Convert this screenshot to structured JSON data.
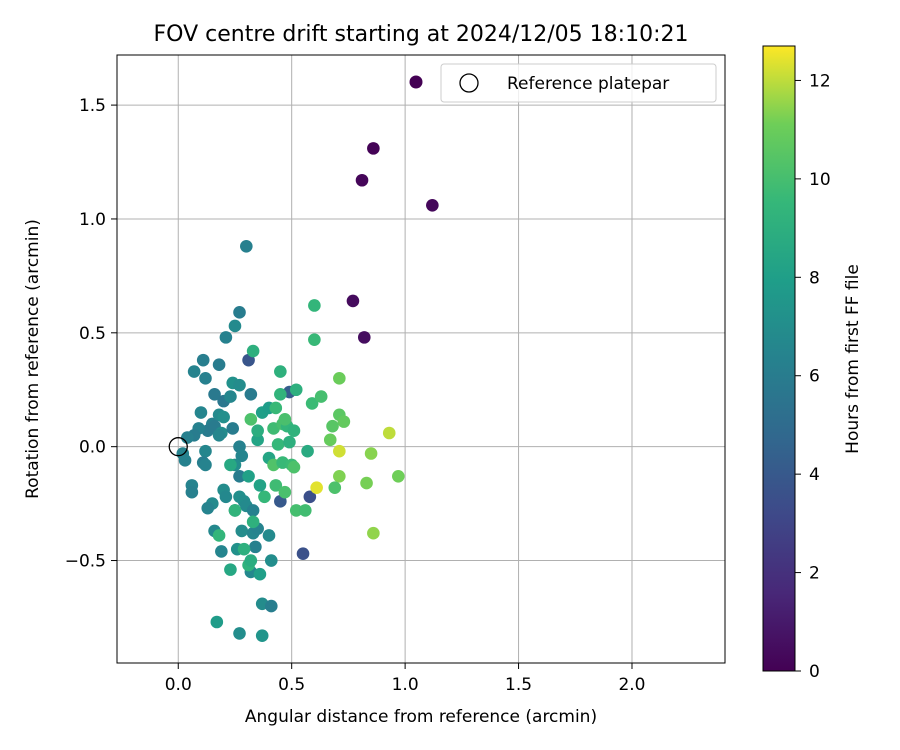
{
  "chart_data": {
    "type": "scatter",
    "title": "FOV centre drift starting at 2024/12/05 18:10:21",
    "xlabel": "Angular distance from reference (arcmin)",
    "ylabel": "Rotation from reference (arcmin)",
    "xlim": [
      -0.27,
      2.41
    ],
    "ylim": [
      -0.95,
      1.72
    ],
    "xticks": [
      0.0,
      0.5,
      1.0,
      1.5,
      2.0
    ],
    "xtick_labels": [
      "0.0",
      "0.5",
      "1.0",
      "1.5",
      "2.0"
    ],
    "yticks": [
      -0.5,
      0.0,
      0.5,
      1.0,
      1.5
    ],
    "ytick_labels": [
      "−0.5",
      "0.0",
      "0.5",
      "1.0",
      "1.5"
    ],
    "grid": true,
    "legend_placement": "top-right",
    "legend": [
      {
        "label": "",
        "marker": "filled-circle",
        "color": "#440154"
      },
      {
        "label": "Reference platepar",
        "marker": "hollow-circle",
        "color": "#000000"
      }
    ],
    "reference_point": {
      "x": 0.0,
      "y": 0.0
    },
    "colorbar": {
      "label": "Hours from first FF file",
      "range": [
        0,
        12.7
      ],
      "ticks": [
        0,
        2,
        4,
        6,
        8,
        10,
        12
      ],
      "tick_labels": [
        "0",
        "2",
        "4",
        "6",
        "8",
        "10",
        "12"
      ],
      "colormap": "viridis"
    },
    "points": [
      {
        "x": 0.86,
        "y": 1.31,
        "h": 0.1
      },
      {
        "x": 0.81,
        "y": 1.17,
        "h": 0.2
      },
      {
        "x": 1.12,
        "y": 1.06,
        "h": 0.3
      },
      {
        "x": 0.77,
        "y": 0.64,
        "h": 0.4
      },
      {
        "x": 0.82,
        "y": 0.48,
        "h": 0.5
      },
      {
        "x": 0.31,
        "y": 0.38,
        "h": 3.8
      },
      {
        "x": 0.55,
        "y": -0.47,
        "h": 3.6
      },
      {
        "x": 0.58,
        "y": -0.22,
        "h": 3.5
      },
      {
        "x": 0.45,
        "y": -0.24,
        "h": 4.0
      },
      {
        "x": 0.49,
        "y": 0.24,
        "h": 4.2
      },
      {
        "x": 0.3,
        "y": 0.88,
        "h": 6.2
      },
      {
        "x": 0.27,
        "y": 0.59,
        "h": 6.0
      },
      {
        "x": 0.25,
        "y": 0.53,
        "h": 6.8
      },
      {
        "x": 0.21,
        "y": 0.48,
        "h": 6.3
      },
      {
        "x": 0.11,
        "y": 0.38,
        "h": 6.1
      },
      {
        "x": 0.07,
        "y": 0.33,
        "h": 6.4
      },
      {
        "x": 0.12,
        "y": 0.3,
        "h": 6.2
      },
      {
        "x": 0.18,
        "y": 0.36,
        "h": 6.0
      },
      {
        "x": 0.16,
        "y": 0.23,
        "h": 5.8
      },
      {
        "x": 0.2,
        "y": 0.2,
        "h": 5.7
      },
      {
        "x": 0.23,
        "y": 0.22,
        "h": 6.6
      },
      {
        "x": 0.24,
        "y": 0.28,
        "h": 7.2
      },
      {
        "x": 0.27,
        "y": 0.27,
        "h": 6.9
      },
      {
        "x": 0.32,
        "y": 0.23,
        "h": 5.9
      },
      {
        "x": 0.1,
        "y": 0.15,
        "h": 6.5
      },
      {
        "x": 0.15,
        "y": 0.1,
        "h": 6.2
      },
      {
        "x": 0.13,
        "y": 0.07,
        "h": 5.9
      },
      {
        "x": 0.09,
        "y": 0.08,
        "h": 6.3
      },
      {
        "x": 0.07,
        "y": 0.05,
        "h": 6.0
      },
      {
        "x": 0.04,
        "y": 0.04,
        "h": 6.2
      },
      {
        "x": 0.02,
        "y": -0.03,
        "h": 6.4
      },
      {
        "x": 0.03,
        "y": -0.06,
        "h": 6.3
      },
      {
        "x": 0.12,
        "y": -0.02,
        "h": 6.6
      },
      {
        "x": 0.11,
        "y": -0.07,
        "h": 6.1
      },
      {
        "x": 0.12,
        "y": -0.08,
        "h": 6.4
      },
      {
        "x": 0.18,
        "y": 0.14,
        "h": 6.8
      },
      {
        "x": 0.2,
        "y": 0.13,
        "h": 7.1
      },
      {
        "x": 0.16,
        "y": 0.09,
        "h": 5.9
      },
      {
        "x": 0.19,
        "y": 0.06,
        "h": 7.0
      },
      {
        "x": 0.18,
        "y": 0.05,
        "h": 6.6
      },
      {
        "x": 0.24,
        "y": 0.08,
        "h": 6.0
      },
      {
        "x": 0.27,
        "y": 0.0,
        "h": 6.3
      },
      {
        "x": 0.28,
        "y": -0.04,
        "h": 6.5
      },
      {
        "x": 0.25,
        "y": -0.08,
        "h": 7.0
      },
      {
        "x": 0.27,
        "y": -0.13,
        "h": 6.0
      },
      {
        "x": 0.06,
        "y": -0.17,
        "h": 6.4
      },
      {
        "x": 0.06,
        "y": -0.2,
        "h": 6.2
      },
      {
        "x": 0.2,
        "y": -0.19,
        "h": 6.9
      },
      {
        "x": 0.27,
        "y": -0.22,
        "h": 7.1
      },
      {
        "x": 0.21,
        "y": -0.22,
        "h": 6.7
      },
      {
        "x": 0.15,
        "y": -0.25,
        "h": 6.8
      },
      {
        "x": 0.13,
        "y": -0.27,
        "h": 6.4
      },
      {
        "x": 0.25,
        "y": -0.28,
        "h": 6.5
      },
      {
        "x": 0.29,
        "y": -0.24,
        "h": 7.0
      },
      {
        "x": 0.3,
        "y": -0.26,
        "h": 6.8
      },
      {
        "x": 0.33,
        "y": -0.28,
        "h": 6.3
      },
      {
        "x": 0.16,
        "y": -0.37,
        "h": 6.7
      },
      {
        "x": 0.28,
        "y": -0.37,
        "h": 6.9
      },
      {
        "x": 0.33,
        "y": -0.38,
        "h": 6.6
      },
      {
        "x": 0.35,
        "y": -0.36,
        "h": 6.4
      },
      {
        "x": 0.4,
        "y": -0.39,
        "h": 6.8
      },
      {
        "x": 0.19,
        "y": -0.46,
        "h": 6.5
      },
      {
        "x": 0.26,
        "y": -0.45,
        "h": 7.2
      },
      {
        "x": 0.34,
        "y": -0.44,
        "h": 6.3
      },
      {
        "x": 0.41,
        "y": -0.5,
        "h": 7.0
      },
      {
        "x": 0.32,
        "y": -0.55,
        "h": 6.7
      },
      {
        "x": 0.37,
        "y": -0.69,
        "h": 6.9
      },
      {
        "x": 0.41,
        "y": -0.7,
        "h": 6.1
      },
      {
        "x": 0.27,
        "y": -0.82,
        "h": 7.0
      },
      {
        "x": 0.37,
        "y": -0.83,
        "h": 7.4
      },
      {
        "x": 0.17,
        "y": -0.77,
        "h": 7.8
      },
      {
        "x": 0.23,
        "y": -0.54,
        "h": 8.5
      },
      {
        "x": 0.36,
        "y": -0.56,
        "h": 8.0
      },
      {
        "x": 0.29,
        "y": -0.45,
        "h": 9.0
      },
      {
        "x": 0.31,
        "y": -0.52,
        "h": 9.2
      },
      {
        "x": 0.32,
        "y": -0.5,
        "h": 8.8
      },
      {
        "x": 0.18,
        "y": -0.39,
        "h": 9.4
      },
      {
        "x": 0.33,
        "y": -0.33,
        "h": 9.1
      },
      {
        "x": 0.25,
        "y": -0.28,
        "h": 9.3
      },
      {
        "x": 0.38,
        "y": -0.22,
        "h": 9.5
      },
      {
        "x": 0.36,
        "y": -0.17,
        "h": 8.2
      },
      {
        "x": 0.31,
        "y": -0.13,
        "h": 8.1
      },
      {
        "x": 0.23,
        "y": -0.08,
        "h": 8.6
      },
      {
        "x": 0.43,
        "y": -0.17,
        "h": 9.8
      },
      {
        "x": 0.47,
        "y": -0.2,
        "h": 10.1
      },
      {
        "x": 0.52,
        "y": -0.28,
        "h": 10.0
      },
      {
        "x": 0.56,
        "y": -0.28,
        "h": 9.9
      },
      {
        "x": 0.4,
        "y": -0.05,
        "h": 8.4
      },
      {
        "x": 0.42,
        "y": -0.08,
        "h": 10.3
      },
      {
        "x": 0.46,
        "y": -0.07,
        "h": 9.6
      },
      {
        "x": 0.5,
        "y": -0.08,
        "h": 9.7
      },
      {
        "x": 0.51,
        "y": -0.09,
        "h": 10.2
      },
      {
        "x": 0.44,
        "y": 0.01,
        "h": 9.5
      },
      {
        "x": 0.49,
        "y": 0.02,
        "h": 9.0
      },
      {
        "x": 0.57,
        "y": -0.02,
        "h": 8.7
      },
      {
        "x": 0.35,
        "y": 0.03,
        "h": 8.3
      },
      {
        "x": 0.42,
        "y": 0.08,
        "h": 9.8
      },
      {
        "x": 0.46,
        "y": 0.1,
        "h": 10.0
      },
      {
        "x": 0.48,
        "y": 0.09,
        "h": 9.4
      },
      {
        "x": 0.51,
        "y": 0.07,
        "h": 9.2
      },
      {
        "x": 0.35,
        "y": 0.07,
        "h": 8.9
      },
      {
        "x": 0.37,
        "y": 0.15,
        "h": 8.0
      },
      {
        "x": 0.4,
        "y": 0.17,
        "h": 7.9
      },
      {
        "x": 0.43,
        "y": 0.17,
        "h": 9.6
      },
      {
        "x": 0.47,
        "y": 0.12,
        "h": 10.1
      },
      {
        "x": 0.52,
        "y": 0.25,
        "h": 9.0
      },
      {
        "x": 0.45,
        "y": 0.23,
        "h": 9.3
      },
      {
        "x": 0.45,
        "y": 0.33,
        "h": 9.1
      },
      {
        "x": 0.32,
        "y": 0.12,
        "h": 10.2
      },
      {
        "x": 0.33,
        "y": 0.42,
        "h": 9.0
      },
      {
        "x": 0.6,
        "y": 0.47,
        "h": 9.6
      },
      {
        "x": 0.6,
        "y": 0.62,
        "h": 9.4
      },
      {
        "x": 0.59,
        "y": 0.19,
        "h": 9.7
      },
      {
        "x": 0.63,
        "y": 0.22,
        "h": 10.0
      },
      {
        "x": 0.71,
        "y": 0.3,
        "h": 11.0
      },
      {
        "x": 0.71,
        "y": 0.14,
        "h": 10.6
      },
      {
        "x": 0.73,
        "y": 0.11,
        "h": 10.8
      },
      {
        "x": 0.68,
        "y": 0.09,
        "h": 10.5
      },
      {
        "x": 0.67,
        "y": 0.03,
        "h": 10.9
      },
      {
        "x": 0.71,
        "y": -0.02,
        "h": 12.2
      },
      {
        "x": 0.85,
        "y": -0.03,
        "h": 11.4
      },
      {
        "x": 0.93,
        "y": 0.06,
        "h": 12.0
      },
      {
        "x": 0.97,
        "y": -0.13,
        "h": 11.1
      },
      {
        "x": 0.83,
        "y": -0.16,
        "h": 11.2
      },
      {
        "x": 0.71,
        "y": -0.13,
        "h": 11.3
      },
      {
        "x": 0.69,
        "y": -0.18,
        "h": 10.2
      },
      {
        "x": 0.61,
        "y": -0.18,
        "h": 12.4
      },
      {
        "x": 0.86,
        "y": -0.38,
        "h": 11.5
      }
    ]
  }
}
